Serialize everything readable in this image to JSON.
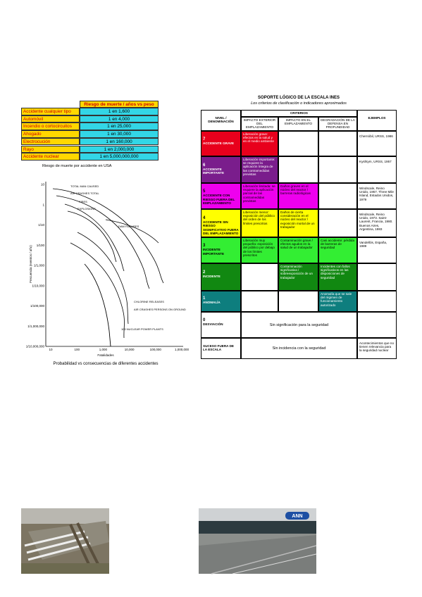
{
  "risk_table": {
    "header": "Riesgo de muerte / años vs peso",
    "rows": [
      [
        "Accidente cualquier tipo",
        "1 en 1,600"
      ],
      [
        "Automóvil",
        "1 en 4,000"
      ],
      [
        "Incendio o cortocircuitos",
        "1 en 25,000"
      ],
      [
        "Ahogado",
        "1 en 30,000"
      ],
      [
        "Electrocución",
        "1 en 160,000"
      ],
      [
        "Rayo",
        "1 en 2,000,000"
      ],
      [
        "Accidente nuclear",
        "1 en 5,000,000,000"
      ]
    ],
    "caption": "Riesgo de muerte por accidente en USA"
  },
  "risk_chart": {
    "y_label": "Frecuencia (eventos / año)",
    "x_label": "Fatalidades",
    "yticks": [
      "10",
      "1",
      "1/10",
      "1/100",
      "1/1,000",
      "1/10,000",
      "1/100,000",
      "1/1,000,000",
      "1/10,000,000"
    ],
    "xticks": [
      "10",
      "100",
      "1,000",
      "10,000",
      "100,000",
      "1,000,000"
    ],
    "curve_labels": [
      "TOTAL MAN CAUSED",
      "AIR CRASHES TOTAL",
      "FIRES",
      "EXPLOSIONS",
      "DAM FAILURES",
      "CHLORINE RELEASES",
      "AIR CRASHES PERSONS ON GROUND",
      "100 NUCLEAR POWER PLANTS"
    ],
    "caption": "Probabilidad vs consecuencias de diferentes accidentes"
  },
  "ines": {
    "title": "SOPORTE LÓGICO DE LA ESCALA INES",
    "subtitle": "Los criterios de clasificación o indicadores aproximados",
    "headers": {
      "level": "NIVEL / DENOMINACIÓN",
      "criteria": "CRITERIOS",
      "ext": "IMPACTO EXTERIOR DEL EMPLAZAMIENTO",
      "in": "IMPACTO EN EL EMPLAZAMIENTO",
      "def": "DEGRADACIÓN DE LA DEFENSA EN PROFUNDIDAD",
      "examples": "EJEMPLOS"
    },
    "rows": [
      {
        "level": 7,
        "name": "ACCIDENTE GRAVE",
        "ext": "Liberación grave: efectos en la salud y en el medio ambiente",
        "examples": "Chernóbil, URSS, 1986"
      },
      {
        "level": 6,
        "name": "ACCIDENTE IMPORTANTE",
        "ext": "Liberación importante: se requiere la aplicación íntegra de las contramedidas previstas",
        "examples": "Kyshtym, URSS, 1957"
      },
      {
        "level": 5,
        "name": "ACCIDENTE CON RIESGO FUERA DEL EMPLAZAMIENTO",
        "ext": "Liberación limitada: se requiere la aplicación parcial de las contramedidas previstas",
        "in": "Daños graves en el núcleo del reactor / barreras radiológicas",
        "examples": "Windscale, Reino Unido, 1957. Three Mile Island, Estados Unidos, 1979"
      },
      {
        "level": 4,
        "name": "ACCIDENTE SIN RIESGO SIGNIFICATIVO FUERA DEL EMPLAZAMIENTO",
        "ext": "Liberación menor: exposición del público del orden de los límites prescritos",
        "in": "Daños de cierta consideración en el núcleo del reactor / exposición mortal de un trabajador",
        "examples": "Windscale, Reino Unido, 1973. Saint-Laurent, Francia, 1980. Buenos Aires, Argentina, 1983"
      },
      {
        "level": 3,
        "name": "INCIDENTE IMPORTANTE",
        "ext": "Liberación muy pequeña: exposición del público por debajo de los límites prescritos",
        "in": "Contaminación grave / efectos agudos en la salud de un trabajador",
        "def": "Casi accidente: pérdida de barreras de seguridad",
        "examples": "Vandellós, España, 1989"
      },
      {
        "level": 2,
        "name": "INCIDENTE",
        "in": "Contaminación significativa / sobreexposición de un trabajador",
        "def": "Incidentes con fallos significativos en las disposiciones de seguridad"
      },
      {
        "level": 1,
        "name": "ANOMALÍA",
        "def": "Anomalía que se sale del régimen de funcionamiento autorizado"
      },
      {
        "level": 0,
        "name": "DESVIACIÓN",
        "merged": "Sin significación para la seguridad"
      },
      {
        "name": "SUCESO FUERA DE LA ESCALA",
        "merged": "Sin incidencia con la seguridad",
        "examples": "Acontecimientos que no tienen relevancia para la seguridad nuclear"
      }
    ]
  },
  "photos": {
    "logo": "ANN"
  }
}
